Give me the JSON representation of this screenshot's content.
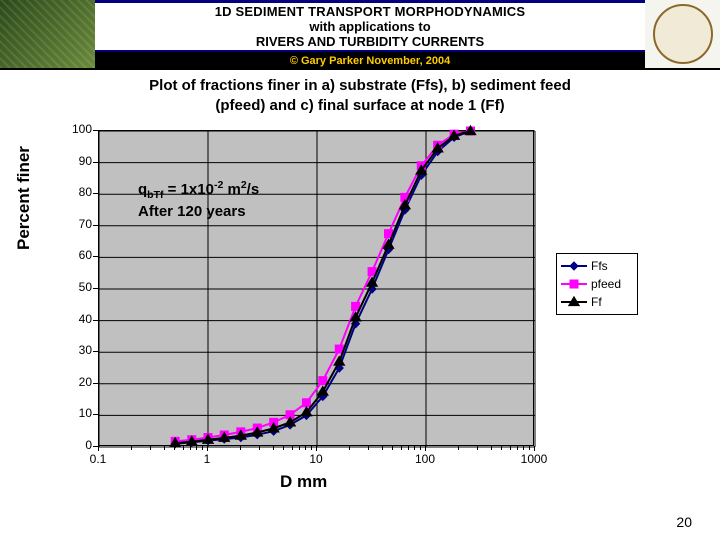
{
  "header": {
    "line1": "1D SEDIMENT TRANSPORT MORPHODYNAMICS",
    "line2": "with applications to",
    "line3": "RIVERS AND TURBIDITY CURRENTS",
    "copyright": "© Gary Parker November, 2004",
    "border_color": "#000080",
    "sub_bg": "#000000",
    "sub_fg": "#ffcc00"
  },
  "chart": {
    "title_line1": "Plot of fractions finer in a) substrate (Ffs), b) sediment feed",
    "title_line2": "(pfeed) and c) final surface at node 1 (Ff)",
    "plot_bg": "#c0c0c0",
    "grid_color": "#000000",
    "yaxis": {
      "label": "Percent finer",
      "min": 0,
      "max": 100,
      "ticks": [
        0,
        10,
        20,
        30,
        40,
        50,
        60,
        70,
        80,
        90,
        100
      ]
    },
    "xaxis": {
      "label": "D mm",
      "scale": "log",
      "min": 0.1,
      "max": 1000,
      "ticks": [
        0.1,
        1,
        10,
        100,
        1000
      ],
      "tick_labels": [
        "0.1",
        "1",
        "10",
        "100",
        "1000"
      ]
    },
    "annotation": {
      "prefix": "q",
      "sub": "bTf",
      "mid": " = 1x10",
      "sup": "-2",
      "suffix1": " m",
      "sup2": "2",
      "suffix2": "/s",
      "line2": "After 120 years"
    },
    "series_order": [
      "Ffs",
      "pfeed",
      "Ff"
    ],
    "series": {
      "Ffs": {
        "label": "Ffs",
        "color": "#000080",
        "marker": "diamond",
        "marker_size": 8,
        "line_width": 2,
        "x": [
          0.5,
          0.71,
          1.0,
          1.41,
          2.0,
          2.83,
          4.0,
          5.66,
          8.0,
          11.3,
          16.0,
          22.6,
          32.0,
          45.3,
          64.0,
          90.5,
          128.0,
          181.0,
          256.0
        ],
        "y": [
          1.0,
          1.5,
          2.0,
          2.5,
          3.0,
          3.9,
          5.0,
          7.0,
          10.0,
          16.0,
          25.0,
          39.0,
          50.0,
          62.5,
          75.0,
          86.0,
          93.5,
          98.0,
          100.0
        ]
      },
      "pfeed": {
        "label": "pfeed",
        "color": "#ff00ff",
        "marker": "square",
        "marker_size": 8,
        "line_width": 2,
        "x": [
          0.5,
          0.71,
          1.0,
          1.41,
          2.0,
          2.83,
          4.0,
          5.66,
          8.0,
          11.3,
          16.0,
          22.6,
          32.0,
          45.3,
          64.0,
          90.5,
          128.0,
          181.0,
          256.0
        ],
        "y": [
          1.8,
          2.3,
          3.0,
          3.8,
          4.8,
          6.0,
          7.8,
          10.2,
          14.0,
          21.0,
          31.0,
          44.5,
          55.5,
          67.5,
          79.0,
          89.0,
          95.5,
          99.0,
          100.0
        ]
      },
      "Ff": {
        "label": "Ff",
        "color": "#000000",
        "marker": "triangle",
        "marker_size": 9,
        "line_width": 2,
        "x": [
          0.5,
          0.71,
          1.0,
          1.41,
          2.0,
          2.83,
          4.0,
          5.66,
          8.0,
          11.3,
          16.0,
          22.6,
          32.0,
          45.3,
          64.0,
          90.5,
          128.0,
          181.0,
          256.0
        ],
        "y": [
          1.2,
          1.7,
          2.3,
          2.9,
          3.6,
          4.6,
          5.9,
          7.8,
          11.0,
          17.5,
          27.0,
          41.0,
          52.0,
          64.0,
          76.5,
          87.5,
          94.5,
          98.5,
          100.0
        ]
      }
    }
  },
  "legend": {
    "items": [
      "Ffs",
      "pfeed",
      "Ff"
    ]
  },
  "page_number": "20"
}
